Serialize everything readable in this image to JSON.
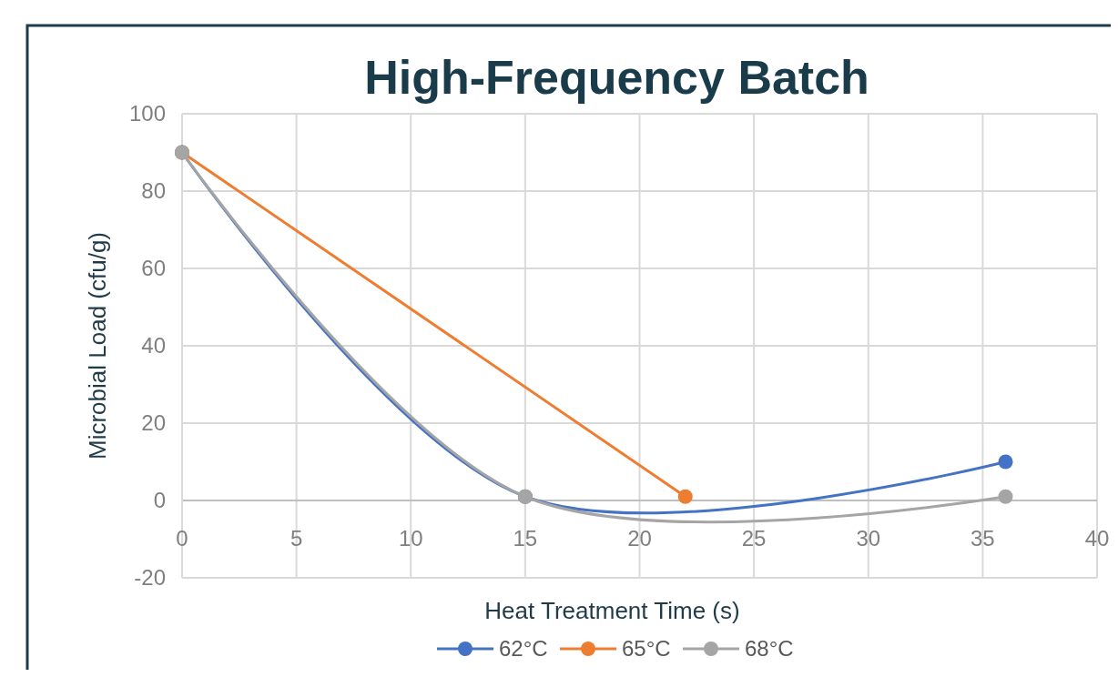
{
  "chart_data": {
    "type": "line",
    "title": "High-Frequency Batch",
    "xlabel": "Heat Treatment Time (s)",
    "ylabel": "Microbial Load (cfu/g)",
    "series": [
      {
        "name": "62°C",
        "color": "#4472c4",
        "x": [
          0,
          15,
          36
        ],
        "values": [
          90,
          1,
          10
        ]
      },
      {
        "name": "65°C",
        "color": "#ed7d31",
        "x": [
          0,
          22
        ],
        "values": [
          90,
          1
        ]
      },
      {
        "name": "68°C",
        "color": "#a5a5a5",
        "x": [
          0,
          15,
          36
        ],
        "values": [
          90,
          1,
          1
        ]
      }
    ],
    "xlim": [
      0,
      40
    ],
    "xticks": [
      0,
      5,
      10,
      15,
      20,
      25,
      30,
      35,
      40
    ],
    "ylim": [
      -20,
      100
    ],
    "yticks": [
      -20,
      0,
      20,
      40,
      60,
      80,
      100
    ],
    "grid": true,
    "legend": "bottom",
    "marker": "circle",
    "line_style": "solid"
  }
}
